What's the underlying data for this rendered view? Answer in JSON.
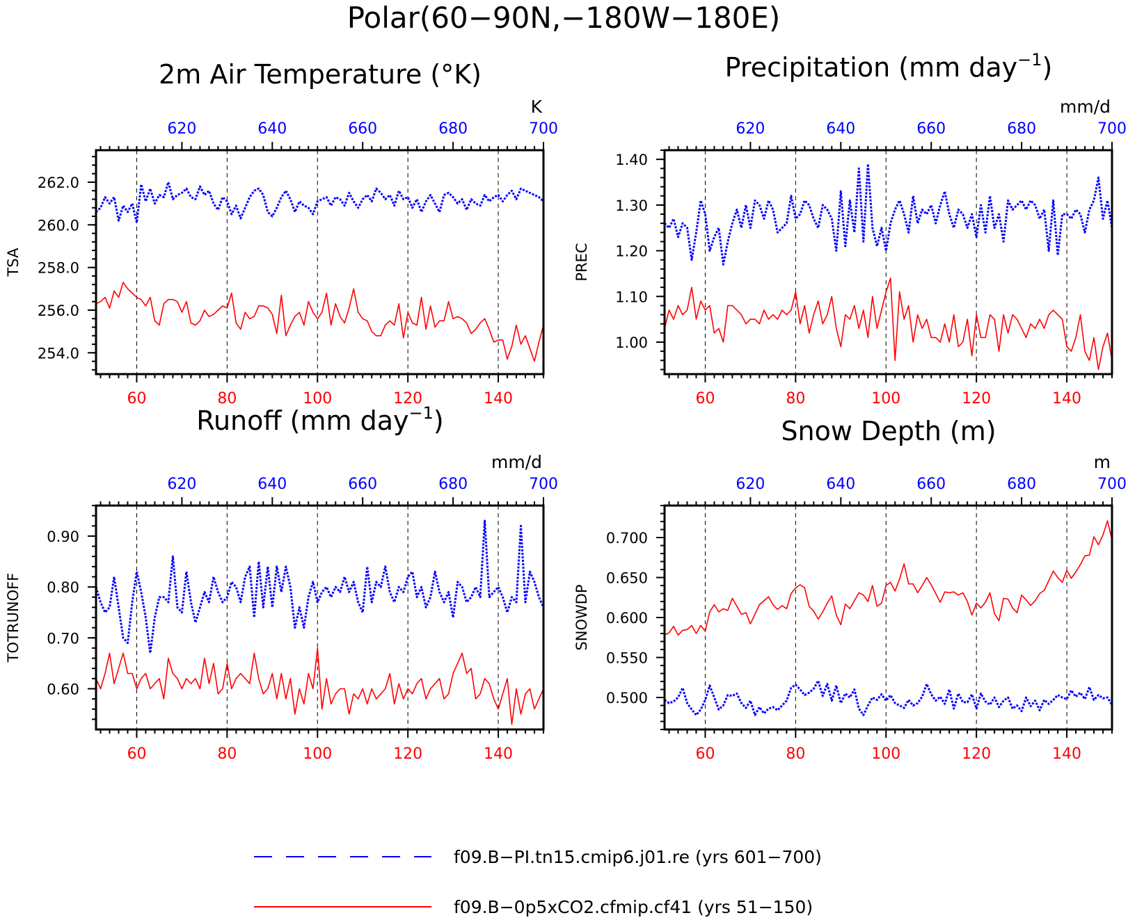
{
  "title": "Polar(60−90N,−180W−180E)",
  "colors": {
    "blue": "#0000ff",
    "red": "#ff0000"
  },
  "legend": {
    "position": "bottom",
    "items": [
      {
        "label": "f09.B−PI.tn15.cmip6.j01.re (yrs 601−700)",
        "color": "#0000ff",
        "style": "dashed"
      },
      {
        "label": "f09.B−0p5xCO2.cfmip.cf41 (yrs 51−150)",
        "color": "#ff0000",
        "style": "solid"
      }
    ]
  },
  "chart_data": [
    {
      "type": "line",
      "title": "2m Air Temperature (°K)",
      "title_sup": "",
      "title_tail": "",
      "ylabel": "TSA",
      "unit": "K",
      "xlim_bottom": [
        51,
        150
      ],
      "xlim_top": [
        601,
        700
      ],
      "ylim": [
        253.0,
        263.5
      ],
      "yticks": [
        "254.0",
        "256.0",
        "258.0",
        "260.0",
        "262.0"
      ],
      "xticks_bottom": [
        "60",
        "80",
        "100",
        "120",
        "140"
      ],
      "xticks_top": [
        "620",
        "640",
        "660",
        "680",
        "700"
      ],
      "grid": "dashed vertical",
      "series": [
        {
          "color": "blue",
          "style": "dotted",
          "axis": "top",
          "x_start": 601,
          "values": [
            260.6,
            260.8,
            261.3,
            261.0,
            261.3,
            260.2,
            260.9,
            260.6,
            261.0,
            260.1,
            261.9,
            261.1,
            261.7,
            261.0,
            261.4,
            261.3,
            262.0,
            261.2,
            261.4,
            261.5,
            261.7,
            261.3,
            261.2,
            261.8,
            261.4,
            261.6,
            261.0,
            260.7,
            261.3,
            261.1,
            260.5,
            260.9,
            260.3,
            260.8,
            261.3,
            261.6,
            261.7,
            261.4,
            260.6,
            260.4,
            260.8,
            261.3,
            261.6,
            261.2,
            260.6,
            261.1,
            260.9,
            260.8,
            260.5,
            261.1,
            261.2,
            261.3,
            260.9,
            261.3,
            261.2,
            260.9,
            261.5,
            261.1,
            260.8,
            261.2,
            261.4,
            261.1,
            261.7,
            261.5,
            261.2,
            261.4,
            260.9,
            261.6,
            261.2,
            261.3,
            260.8,
            261.2,
            260.6,
            261.1,
            261.4,
            261.0,
            260.6,
            261.4,
            261.5,
            261.3,
            261.0,
            261.2,
            260.7,
            261.2,
            261.0,
            260.9,
            261.4,
            261.1,
            261.3,
            261.4,
            261.1,
            261.4,
            261.6,
            261.2,
            261.7,
            261.6,
            261.5,
            261.4,
            261.3,
            261.1
          ]
        },
        {
          "color": "red",
          "style": "solid",
          "axis": "bottom",
          "x_start": 51,
          "values": [
            256.3,
            256.4,
            256.6,
            256.1,
            256.9,
            256.6,
            257.3,
            257.0,
            256.8,
            256.6,
            256.5,
            256.2,
            256.6,
            255.5,
            255.3,
            256.3,
            256.5,
            256.5,
            256.4,
            255.9,
            256.4,
            255.4,
            255.3,
            255.5,
            256.0,
            255.7,
            255.8,
            256.0,
            256.2,
            256.1,
            256.8,
            255.4,
            255.1,
            255.9,
            255.6,
            255.7,
            256.2,
            256.2,
            256.1,
            255.8,
            254.9,
            256.7,
            254.8,
            255.3,
            255.7,
            255.9,
            255.3,
            256.4,
            255.9,
            255.6,
            255.9,
            256.8,
            255.3,
            256.3,
            255.7,
            255.4,
            256.1,
            257.0,
            255.9,
            255.6,
            255.5,
            255.0,
            254.8,
            254.8,
            255.3,
            255.5,
            255.3,
            256.3,
            254.7,
            255.9,
            255.4,
            255.3,
            256.6,
            255.1,
            256.2,
            255.2,
            255.5,
            255.5,
            256.4,
            255.6,
            255.7,
            255.6,
            255.4,
            254.9,
            255.1,
            255.4,
            255.6,
            255.1,
            254.5,
            254.6,
            254.6,
            253.7,
            254.3,
            255.3,
            254.4,
            254.8,
            254.2,
            253.6,
            254.5,
            255.3
          ]
        }
      ]
    },
    {
      "type": "line",
      "title": "Precipitation (mm day",
      "title_sup": "−1",
      "title_tail": ")",
      "ylabel": "PREC",
      "unit": "mm/d",
      "xlim_bottom": [
        51,
        150
      ],
      "xlim_top": [
        601,
        700
      ],
      "ylim": [
        0.93,
        1.42
      ],
      "yticks": [
        "1.00",
        "1.10",
        "1.20",
        "1.30",
        "1.40"
      ],
      "xticks_bottom": [
        "60",
        "80",
        "100",
        "120",
        "140"
      ],
      "xticks_top": [
        "620",
        "640",
        "660",
        "680",
        "700"
      ],
      "grid": "dashed vertical",
      "series": [
        {
          "color": "blue",
          "style": "dotted",
          "axis": "top",
          "x_start": 601,
          "values": [
            1.26,
            1.25,
            1.27,
            1.23,
            1.26,
            1.25,
            1.18,
            1.24,
            1.31,
            1.28,
            1.2,
            1.23,
            1.25,
            1.17,
            1.22,
            1.26,
            1.29,
            1.25,
            1.3,
            1.25,
            1.31,
            1.3,
            1.27,
            1.31,
            1.29,
            1.24,
            1.25,
            1.26,
            1.32,
            1.27,
            1.28,
            1.31,
            1.3,
            1.27,
            1.25,
            1.3,
            1.29,
            1.27,
            1.2,
            1.33,
            1.21,
            1.31,
            1.24,
            1.38,
            1.22,
            1.39,
            1.25,
            1.21,
            1.25,
            1.2,
            1.26,
            1.29,
            1.31,
            1.28,
            1.24,
            1.32,
            1.26,
            1.29,
            1.28,
            1.3,
            1.26,
            1.3,
            1.33,
            1.28,
            1.25,
            1.29,
            1.28,
            1.25,
            1.28,
            1.23,
            1.3,
            1.24,
            1.32,
            1.25,
            1.28,
            1.22,
            1.31,
            1.29,
            1.3,
            1.31,
            1.29,
            1.31,
            1.3,
            1.27,
            1.29,
            1.2,
            1.31,
            1.19,
            1.28,
            1.28,
            1.27,
            1.29,
            1.28,
            1.24,
            1.29,
            1.31,
            1.36,
            1.27,
            1.31,
            1.25
          ]
        },
        {
          "color": "red",
          "style": "solid",
          "axis": "bottom",
          "x_start": 51,
          "values": [
            1.03,
            1.07,
            1.05,
            1.08,
            1.06,
            1.07,
            1.12,
            1.05,
            1.09,
            1.07,
            1.08,
            1.02,
            1.03,
            1.0,
            1.08,
            1.08,
            1.07,
            1.06,
            1.04,
            1.05,
            1.05,
            1.04,
            1.07,
            1.05,
            1.06,
            1.05,
            1.07,
            1.06,
            1.07,
            1.11,
            1.04,
            1.08,
            1.02,
            1.06,
            1.09,
            1.04,
            1.06,
            1.1,
            1.03,
            0.99,
            1.06,
            1.05,
            1.08,
            1.03,
            1.07,
            1.01,
            1.1,
            1.03,
            1.07,
            1.11,
            1.14,
            0.96,
            1.11,
            1.05,
            1.08,
            1.0,
            1.06,
            1.03,
            1.05,
            1.01,
            1.01,
            1.0,
            1.04,
            1.0,
            1.06,
            0.99,
            1.0,
            1.05,
            0.97,
            1.06,
            1.01,
            1.01,
            1.06,
            1.05,
            0.98,
            1.06,
            1.02,
            1.06,
            1.05,
            1.03,
            1.01,
            1.04,
            1.03,
            1.05,
            1.03,
            1.06,
            1.07,
            1.06,
            1.05,
            0.99,
            0.98,
            1.01,
            1.06,
            0.98,
            0.96,
            1.01,
            0.94,
            0.99,
            1.02,
            0.96
          ]
        }
      ]
    },
    {
      "type": "line",
      "title": "Runoff (mm day",
      "title_sup": "−1",
      "title_tail": ")",
      "ylabel": "TOTRUNOFF",
      "unit": "mm/d",
      "xlim_bottom": [
        51,
        150
      ],
      "xlim_top": [
        601,
        700
      ],
      "ylim": [
        0.52,
        0.96
      ],
      "yticks": [
        "0.60",
        "0.70",
        "0.80",
        "0.90"
      ],
      "xticks_bottom": [
        "60",
        "80",
        "100",
        "120",
        "140"
      ],
      "xticks_top": [
        "620",
        "640",
        "660",
        "680",
        "700"
      ],
      "grid": "dashed vertical",
      "series": [
        {
          "color": "blue",
          "style": "dotted",
          "axis": "top",
          "x_start": 601,
          "values": [
            0.8,
            0.77,
            0.75,
            0.76,
            0.82,
            0.76,
            0.7,
            0.69,
            0.77,
            0.83,
            0.79,
            0.74,
            0.67,
            0.74,
            0.78,
            0.78,
            0.77,
            0.86,
            0.76,
            0.75,
            0.83,
            0.77,
            0.73,
            0.76,
            0.79,
            0.77,
            0.82,
            0.79,
            0.77,
            0.78,
            0.81,
            0.8,
            0.77,
            0.82,
            0.84,
            0.74,
            0.85,
            0.76,
            0.84,
            0.76,
            0.84,
            0.79,
            0.84,
            0.8,
            0.72,
            0.76,
            0.72,
            0.78,
            0.81,
            0.77,
            0.79,
            0.8,
            0.78,
            0.8,
            0.79,
            0.82,
            0.79,
            0.81,
            0.77,
            0.75,
            0.84,
            0.77,
            0.81,
            0.8,
            0.84,
            0.79,
            0.77,
            0.8,
            0.79,
            0.82,
            0.83,
            0.78,
            0.8,
            0.76,
            0.78,
            0.83,
            0.79,
            0.77,
            0.79,
            0.74,
            0.81,
            0.8,
            0.77,
            0.78,
            0.8,
            0.78,
            0.93,
            0.78,
            0.79,
            0.8,
            0.78,
            0.75,
            0.78,
            0.77,
            0.92,
            0.77,
            0.83,
            0.81,
            0.78,
            0.76
          ]
        },
        {
          "color": "red",
          "style": "solid",
          "axis": "bottom",
          "x_start": 51,
          "values": [
            0.62,
            0.6,
            0.63,
            0.67,
            0.61,
            0.64,
            0.67,
            0.63,
            0.63,
            0.6,
            0.62,
            0.63,
            0.6,
            0.61,
            0.62,
            0.58,
            0.66,
            0.63,
            0.62,
            0.6,
            0.62,
            0.61,
            0.62,
            0.6,
            0.66,
            0.61,
            0.65,
            0.59,
            0.6,
            0.65,
            0.6,
            0.62,
            0.63,
            0.62,
            0.61,
            0.67,
            0.62,
            0.59,
            0.6,
            0.63,
            0.58,
            0.63,
            0.58,
            0.62,
            0.55,
            0.6,
            0.57,
            0.63,
            0.6,
            0.68,
            0.56,
            0.62,
            0.57,
            0.59,
            0.6,
            0.6,
            0.55,
            0.59,
            0.58,
            0.6,
            0.57,
            0.6,
            0.58,
            0.59,
            0.6,
            0.63,
            0.57,
            0.61,
            0.58,
            0.6,
            0.59,
            0.61,
            0.62,
            0.58,
            0.6,
            0.61,
            0.62,
            0.58,
            0.59,
            0.63,
            0.65,
            0.67,
            0.63,
            0.64,
            0.58,
            0.59,
            0.62,
            0.61,
            0.58,
            0.56,
            0.59,
            0.62,
            0.53,
            0.6,
            0.55,
            0.59,
            0.6,
            0.56,
            0.58,
            0.6
          ]
        }
      ]
    },
    {
      "type": "line",
      "title": "Snow Depth (m)",
      "title_sup": "",
      "title_tail": "",
      "ylabel": "SNOWDP",
      "unit": "m",
      "xlim_bottom": [
        51,
        150
      ],
      "xlim_top": [
        601,
        700
      ],
      "ylim": [
        0.46,
        0.74
      ],
      "yticks": [
        "0.500",
        "0.550",
        "0.600",
        "0.650",
        "0.700"
      ],
      "xticks_bottom": [
        "60",
        "80",
        "100",
        "120",
        "140"
      ],
      "xticks_top": [
        "620",
        "640",
        "660",
        "680",
        "700"
      ],
      "grid": "dashed vertical",
      "series": [
        {
          "color": "blue",
          "style": "dotted",
          "axis": "top",
          "x_start": 601,
          "values": [
            0.497,
            0.493,
            0.495,
            0.5,
            0.512,
            0.493,
            0.485,
            0.478,
            0.485,
            0.497,
            0.515,
            0.5,
            0.485,
            0.49,
            0.503,
            0.502,
            0.505,
            0.493,
            0.487,
            0.496,
            0.478,
            0.488,
            0.48,
            0.486,
            0.488,
            0.484,
            0.49,
            0.496,
            0.512,
            0.516,
            0.51,
            0.503,
            0.506,
            0.511,
            0.521,
            0.502,
            0.517,
            0.496,
            0.515,
            0.493,
            0.505,
            0.5,
            0.51,
            0.486,
            0.478,
            0.49,
            0.5,
            0.497,
            0.504,
            0.496,
            0.503,
            0.493,
            0.49,
            0.487,
            0.497,
            0.49,
            0.493,
            0.501,
            0.517,
            0.504,
            0.496,
            0.501,
            0.492,
            0.51,
            0.486,
            0.505,
            0.494,
            0.494,
            0.504,
            0.486,
            0.505,
            0.495,
            0.491,
            0.5,
            0.488,
            0.496,
            0.5,
            0.486,
            0.49,
            0.483,
            0.5,
            0.489,
            0.496,
            0.484,
            0.497,
            0.492,
            0.497,
            0.503,
            0.5,
            0.498,
            0.509,
            0.501,
            0.506,
            0.498,
            0.513,
            0.497,
            0.503,
            0.499,
            0.5,
            0.491
          ]
        },
        {
          "color": "red",
          "style": "solid",
          "axis": "bottom",
          "x_start": 51,
          "values": [
            0.578,
            0.581,
            0.589,
            0.578,
            0.584,
            0.585,
            0.59,
            0.58,
            0.59,
            0.583,
            0.607,
            0.616,
            0.607,
            0.611,
            0.609,
            0.624,
            0.614,
            0.604,
            0.606,
            0.592,
            0.604,
            0.616,
            0.621,
            0.626,
            0.616,
            0.61,
            0.615,
            0.611,
            0.63,
            0.637,
            0.641,
            0.637,
            0.614,
            0.608,
            0.598,
            0.607,
            0.618,
            0.627,
            0.603,
            0.591,
            0.617,
            0.611,
            0.621,
            0.631,
            0.628,
            0.62,
            0.64,
            0.614,
            0.618,
            0.64,
            0.644,
            0.633,
            0.648,
            0.667,
            0.642,
            0.642,
            0.631,
            0.64,
            0.65,
            0.641,
            0.63,
            0.619,
            0.632,
            0.631,
            0.632,
            0.628,
            0.631,
            0.62,
            0.603,
            0.618,
            0.612,
            0.619,
            0.631,
            0.605,
            0.596,
            0.624,
            0.623,
            0.612,
            0.606,
            0.628,
            0.622,
            0.615,
            0.621,
            0.63,
            0.634,
            0.646,
            0.658,
            0.65,
            0.644,
            0.659,
            0.649,
            0.657,
            0.666,
            0.677,
            0.678,
            0.701,
            0.691,
            0.703,
            0.721,
            0.697
          ]
        }
      ]
    }
  ]
}
